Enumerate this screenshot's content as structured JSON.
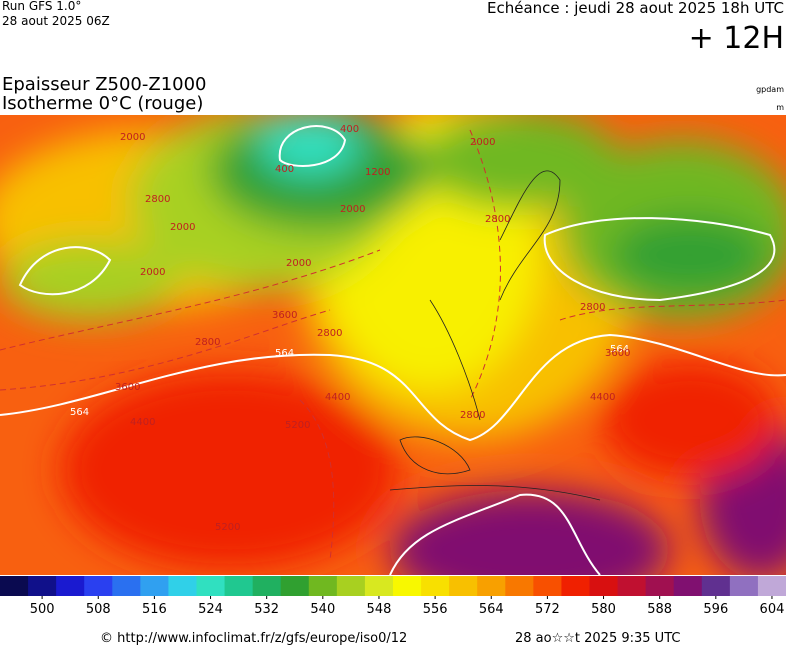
{
  "header": {
    "run": "Run GFS 1.0°",
    "run_date": "28 aout 2025 06Z",
    "echeance": "Echéance : jeudi 28 aout 2025 18h UTC",
    "lead": "+ 12H"
  },
  "map": {
    "title": "Epaisseur Z500-Z1000",
    "subtitle": "Isotherme 0°C (rouge)",
    "unit_top": "gpdam",
    "unit_bottom": "m",
    "contour_labels": [
      "2000",
      "2800",
      "2000",
      "2000",
      "400",
      "1200",
      "2000",
      "2800",
      "2000",
      "2800",
      "2000",
      "3600",
      "2800",
      "2800",
      "564",
      "3600",
      "564",
      "4400",
      "4400",
      "5200",
      "2800",
      "564",
      "3600",
      "4400",
      "5200",
      "400"
    ]
  },
  "colorbar": {
    "lim": [
      494,
      606
    ],
    "ticks": [
      500,
      508,
      516,
      524,
      532,
      540,
      548,
      556,
      564,
      572,
      580,
      588,
      596,
      604
    ],
    "colors": [
      "#0a0a50",
      "#10108a",
      "#1a1ad0",
      "#2a40f0",
      "#2a70f0",
      "#30a0f0",
      "#30d0e8",
      "#30e0c0",
      "#20c890",
      "#20b060",
      "#30a030",
      "#70b820",
      "#a8d020",
      "#d8e820",
      "#f8f800",
      "#f8e000",
      "#f8c000",
      "#f8a000",
      "#f87800",
      "#f85000",
      "#f02000",
      "#d81010",
      "#c01030",
      "#a01050",
      "#801070",
      "#603090",
      "#9070c0",
      "#c0a8d8"
    ]
  },
  "footer": {
    "source": "© http://www.infoclimat.fr/z/gfs/europe/iso0/12",
    "generated": "28 ao☆☆t 2025  9:35 UTC"
  }
}
